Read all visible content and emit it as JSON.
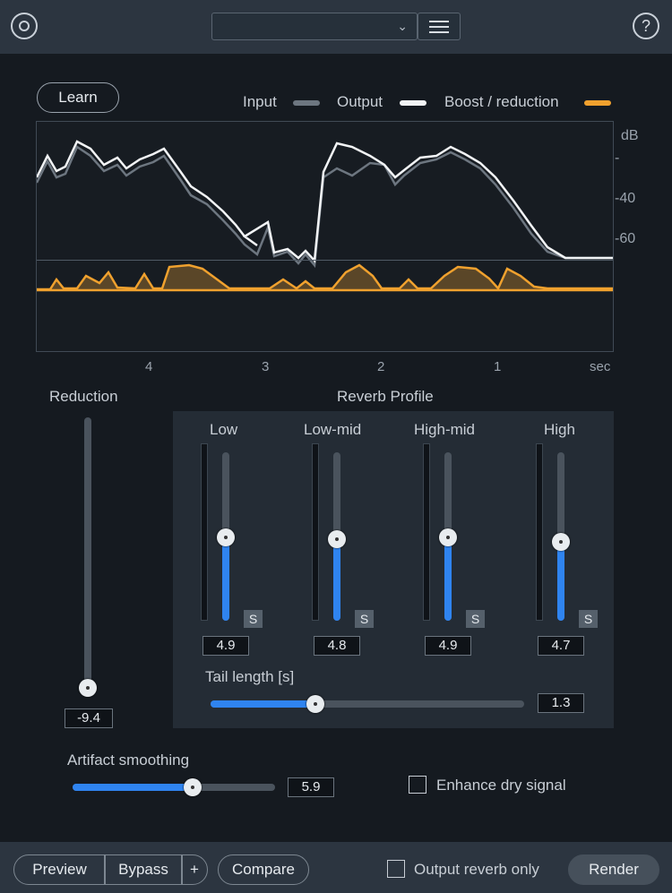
{
  "toolbar": {
    "preset_value": "",
    "logo_icon": "izotope-logo-icon",
    "help_label": "?"
  },
  "learn_label": "Learn",
  "legend": [
    {
      "label": "Input",
      "color": "#6d7680"
    },
    {
      "label": "Output",
      "color": "#f2f4f6"
    },
    {
      "label": "Boost / reduction",
      "color": "#f0a12e"
    }
  ],
  "graph": {
    "db_labels": [
      "dB",
      "-",
      "-40",
      "-60"
    ],
    "time_ticks": [
      "4",
      "3",
      "2",
      "1",
      "sec"
    ]
  },
  "reduction": {
    "label": "Reduction",
    "value": "-9.4",
    "level": 0.0
  },
  "reverb_profile": {
    "title": "Reverb Profile",
    "bands": [
      {
        "label": "Low",
        "value": "4.9",
        "level": 0.49,
        "solo_label": "S"
      },
      {
        "label": "Low-mid",
        "value": "4.8",
        "level": 0.48,
        "solo_label": "S"
      },
      {
        "label": "High-mid",
        "value": "4.9",
        "level": 0.49,
        "solo_label": "S"
      },
      {
        "label": "High",
        "value": "4.7",
        "level": 0.47,
        "solo_label": "S"
      }
    ],
    "tail_length": {
      "label": "Tail length [s]",
      "value": "1.3",
      "level": 0.33
    }
  },
  "artifact_smoothing": {
    "label": "Artifact smoothing",
    "value": "5.9",
    "level": 0.59
  },
  "enhance_dry_signal": {
    "label": "Enhance dry signal",
    "checked": false
  },
  "bottom": {
    "preview_label": "Preview",
    "bypass_label": "Bypass",
    "plus_label": "+",
    "compare_label": "Compare",
    "output_reverb_only_label": "Output reverb only",
    "render_label": "Render"
  },
  "colors": {
    "accent_blue": "#2f84f0",
    "orange": "#f0a12e",
    "bg": "#151a20",
    "bar": "#2c3540"
  }
}
